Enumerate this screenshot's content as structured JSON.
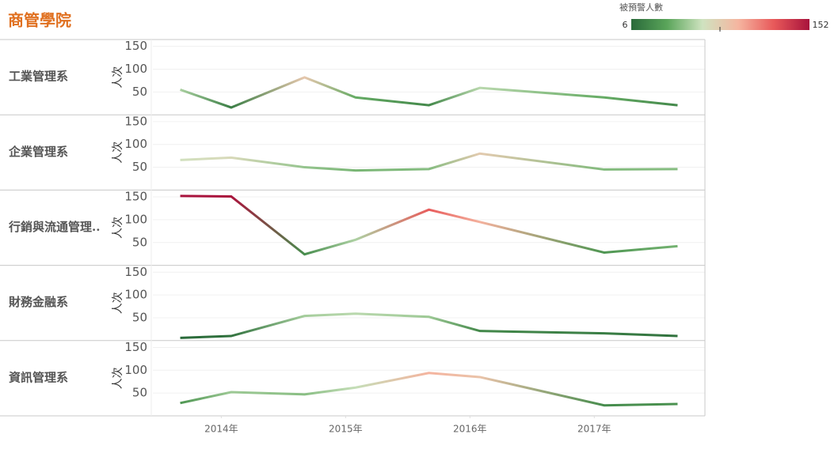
{
  "chart_data": {
    "type": "line",
    "title": "商管學院",
    "y_label": "人次",
    "color_legend": {
      "title": "被預警人數",
      "min": 6,
      "max": 152,
      "colors": [
        "#2a6a3a",
        "#5aa55a",
        "#cfe3c0",
        "#f5b5a0",
        "#e8595a",
        "#a8123c"
      ]
    },
    "x": [
      2013.67,
      2014.08,
      2014.67,
      2015.08,
      2015.67,
      2016.08,
      2017.08,
      2017.67
    ],
    "xlim": [
      2013.45,
      2017.89
    ],
    "xticks": [
      {
        "value": 2014,
        "label": "2014年"
      },
      {
        "value": 2015,
        "label": "2015年"
      },
      {
        "value": 2016,
        "label": "2016年"
      },
      {
        "value": 2017,
        "label": "2017年"
      }
    ],
    "ylim": [
      0,
      165
    ],
    "yticks": [
      50,
      100,
      150
    ],
    "grid": true,
    "series": [
      {
        "name": "工業管理系",
        "values": [
          55,
          16,
          82,
          38,
          21,
          59,
          38,
          21
        ]
      },
      {
        "name": "企業管理系",
        "values": [
          66,
          71,
          50,
          43,
          46,
          80,
          45,
          46
        ]
      },
      {
        "name": "行銷與流通管理..",
        "values": [
          152,
          151,
          24,
          56,
          122,
          95,
          28,
          42
        ]
      },
      {
        "name": "財務金融系",
        "values": [
          6,
          10,
          54,
          59,
          52,
          21,
          16,
          10
        ]
      },
      {
        "name": "資訊管理系",
        "values": [
          28,
          52,
          47,
          62,
          94,
          85,
          23,
          26
        ]
      }
    ]
  }
}
